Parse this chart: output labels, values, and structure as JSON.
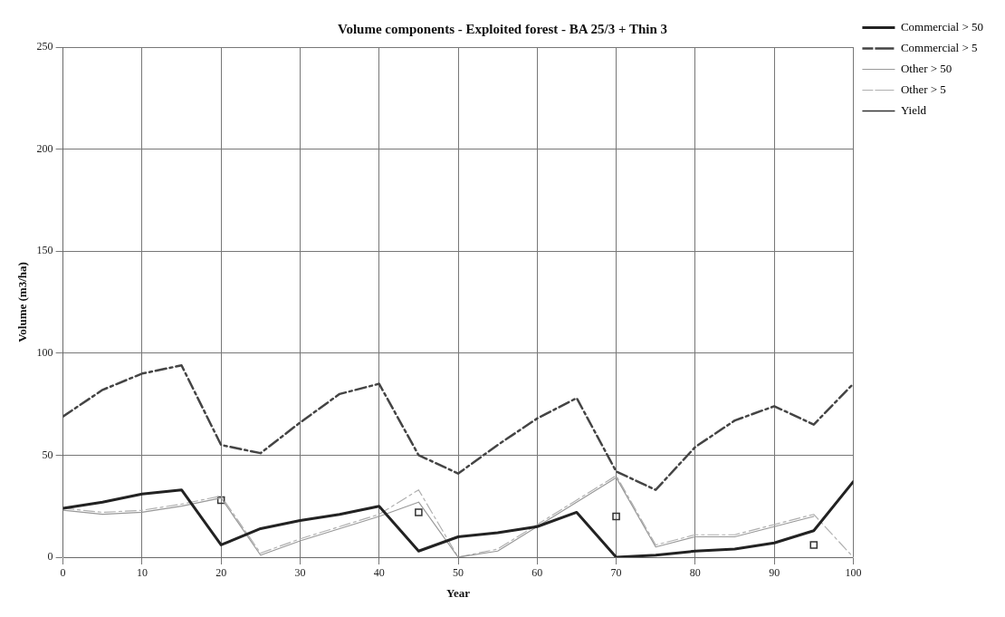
{
  "chart_data": {
    "type": "line",
    "title": "Volume components - Exploited forest - BA 25/3 + Thin 3",
    "xlabel": "Year",
    "ylabel": "Volume (m3/ha)",
    "x": [
      0,
      5,
      10,
      15,
      20,
      25,
      30,
      35,
      40,
      45,
      50,
      55,
      60,
      65,
      70,
      75,
      80,
      85,
      90,
      95,
      100
    ],
    "xlim": [
      0,
      100
    ],
    "xticks": [
      0,
      10,
      20,
      30,
      40,
      50,
      60,
      70,
      80,
      90,
      100
    ],
    "ylim": [
      0,
      250
    ],
    "yticks": [
      0,
      50,
      100,
      150,
      200,
      250
    ],
    "grid": true,
    "legend": "top right",
    "marker": "none",
    "series": [
      {
        "name": "Commercial > 50",
        "color": "#222222",
        "line_style": "solid",
        "values": [
          24,
          27,
          31,
          33,
          6,
          14,
          18,
          21,
          25,
          3,
          10,
          12,
          15,
          22,
          0,
          1,
          3,
          4,
          7,
          13,
          37
        ]
      },
      {
        "name": "Commercial > 5",
        "color": "#444444",
        "line_style": "dashed",
        "values": [
          69,
          82,
          90,
          94,
          55,
          51,
          66,
          80,
          85,
          50,
          41,
          55,
          68,
          78,
          42,
          33,
          54,
          67,
          74,
          65,
          85
        ]
      },
      {
        "name": "Other > 50",
        "color": "#999999",
        "line_style": "solid",
        "values": [
          23,
          21,
          22,
          25,
          29,
          1,
          8,
          14,
          20,
          27,
          0,
          3,
          15,
          27,
          39,
          5,
          10,
          10,
          15,
          20,
          null
        ]
      },
      {
        "name": "Other > 5",
        "color": "#b0b0b0",
        "line_style": "dashed",
        "values": [
          24,
          22,
          23,
          26,
          30,
          2,
          9,
          15,
          21,
          33,
          0,
          4,
          16,
          28,
          40,
          6,
          11,
          11,
          16,
          21,
          0
        ]
      },
      {
        "name": "Yield",
        "type": "scatter",
        "marker": "square",
        "color": "#333333",
        "x": [
          20,
          45,
          70,
          95
        ],
        "values": [
          28,
          22,
          20,
          6
        ]
      }
    ]
  }
}
